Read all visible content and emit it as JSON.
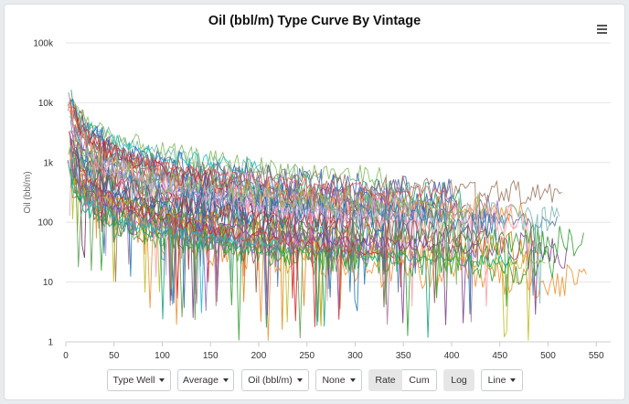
{
  "chart_data": {
    "type": "line",
    "title": "Oil (bbl/m) Type Curve By Vintage",
    "xlabel": "",
    "ylabel": "Oil (bbl/m)",
    "x_ticks": [
      "0",
      "50",
      "100",
      "150",
      "200",
      "250",
      "300",
      "350",
      "400",
      "450",
      "500",
      "550"
    ],
    "y_ticks": [
      "1",
      "10",
      "100",
      "1k",
      "10k",
      "100k"
    ],
    "xlim": [
      0,
      565
    ],
    "ylim": [
      1,
      100000
    ],
    "y_scale": "log",
    "grid": "horizontal",
    "legend": "none",
    "series_count": 45,
    "series_colors": [
      "#4e79a7",
      "#f28e2b",
      "#59a14f",
      "#e15759",
      "#76b7b2",
      "#b07aa1",
      "#9c755f",
      "#ff9da7",
      "#7f3c8d",
      "#11a579",
      "#3969ac",
      "#a8323e",
      "#80ba5a",
      "#e68310",
      "#1f77b4",
      "#c5a3d9",
      "#2ca02c",
      "#d62728",
      "#9467bd",
      "#8c564b",
      "#17becf",
      "#bcbd22",
      "#6f2f5a",
      "#3f5fbf"
    ]
  },
  "menu": {
    "icon": "hamburger-menu-icon"
  },
  "controls": {
    "type_well": "Type Well",
    "average": "Average",
    "oil": "Oil (bbl/m)",
    "none": "None",
    "rate": "Rate",
    "cum": "Cum",
    "log": "Log",
    "line": "Line"
  }
}
